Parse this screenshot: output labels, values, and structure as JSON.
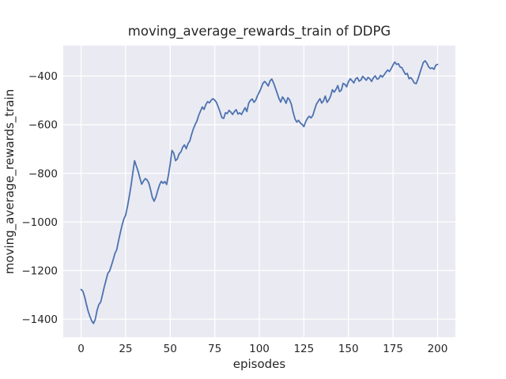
{
  "chart_data": {
    "type": "line",
    "title": "moving_average_rewards_train of DDPG",
    "xlabel": "episodes",
    "ylabel": "moving_average_rewards_train",
    "x_ticks": [
      0,
      25,
      50,
      75,
      100,
      125,
      150,
      175,
      200
    ],
    "y_ticks": [
      -400,
      -600,
      -800,
      -1000,
      -1200,
      -1400
    ],
    "xlim": [
      -10,
      210
    ],
    "ylim": [
      -1475,
      -274
    ],
    "grid": true,
    "legend": null,
    "series": [
      {
        "name": "moving_average_rewards_train",
        "x_start": 0,
        "x_step": 1,
        "x_end": 200,
        "values": [
          -1278,
          -1285,
          -1308,
          -1340,
          -1368,
          -1390,
          -1408,
          -1418,
          -1400,
          -1363,
          -1340,
          -1330,
          -1300,
          -1268,
          -1240,
          -1212,
          -1202,
          -1180,
          -1156,
          -1130,
          -1115,
          -1078,
          -1045,
          -1013,
          -988,
          -972,
          -938,
          -897,
          -852,
          -800,
          -748,
          -770,
          -792,
          -820,
          -845,
          -832,
          -822,
          -827,
          -840,
          -868,
          -900,
          -915,
          -897,
          -871,
          -848,
          -833,
          -841,
          -834,
          -846,
          -808,
          -762,
          -706,
          -717,
          -748,
          -741,
          -720,
          -712,
          -693,
          -683,
          -699,
          -678,
          -667,
          -640,
          -617,
          -599,
          -585,
          -561,
          -544,
          -527,
          -537,
          -517,
          -505,
          -510,
          -499,
          -493,
          -499,
          -509,
          -528,
          -548,
          -571,
          -574,
          -551,
          -554,
          -541,
          -548,
          -558,
          -546,
          -538,
          -556,
          -551,
          -558,
          -544,
          -530,
          -546,
          -512,
          -500,
          -494,
          -508,
          -499,
          -480,
          -466,
          -449,
          -430,
          -422,
          -430,
          -441,
          -420,
          -412,
          -428,
          -449,
          -470,
          -492,
          -507,
          -486,
          -496,
          -512,
          -489,
          -498,
          -517,
          -550,
          -576,
          -589,
          -582,
          -593,
          -599,
          -608,
          -588,
          -574,
          -565,
          -572,
          -562,
          -538,
          -516,
          -504,
          -493,
          -511,
          -502,
          -482,
          -508,
          -498,
          -482,
          -456,
          -466,
          -455,
          -439,
          -464,
          -458,
          -430,
          -434,
          -444,
          -423,
          -411,
          -419,
          -428,
          -412,
          -406,
          -421,
          -416,
          -401,
          -409,
          -417,
          -405,
          -411,
          -422,
          -407,
          -399,
          -412,
          -410,
          -397,
          -404,
          -395,
          -384,
          -375,
          -381,
          -369,
          -354,
          -342,
          -352,
          -349,
          -363,
          -365,
          -380,
          -393,
          -389,
          -411,
          -406,
          -416,
          -429,
          -431,
          -412,
          -389,
          -366,
          -344,
          -337,
          -347,
          -362,
          -369,
          -366,
          -372,
          -355,
          -352
        ]
      }
    ],
    "style": {
      "axes_background": "#eaeaf2",
      "grid_color": "#ffffff",
      "line_color": "#4c72b0",
      "text_color": "#262626",
      "figure_background": "#ffffff"
    }
  }
}
